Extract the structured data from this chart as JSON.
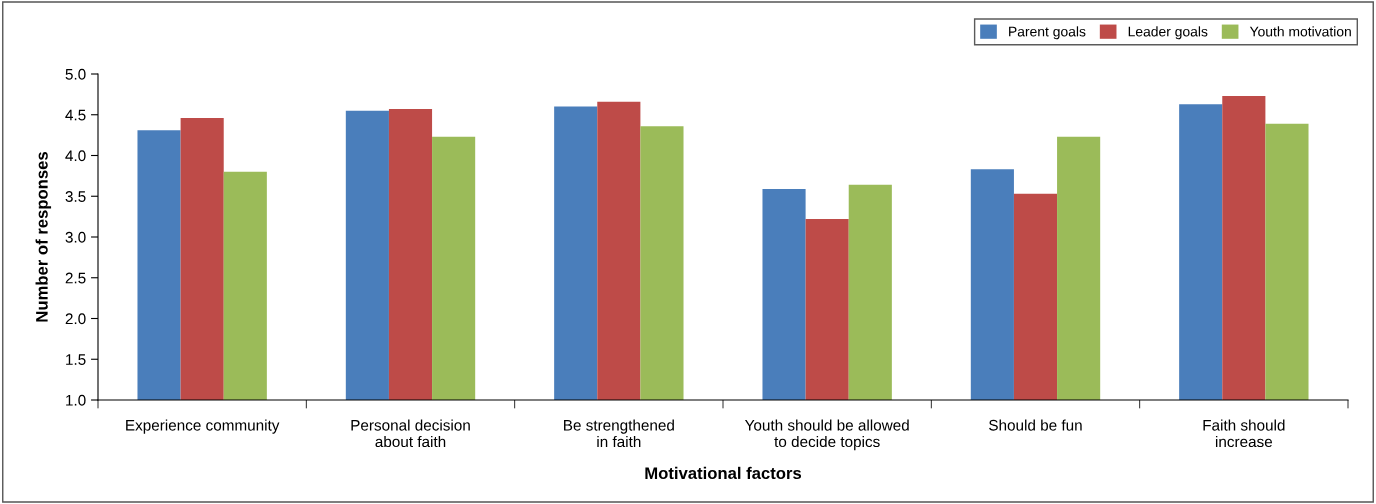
{
  "chart_data": {
    "type": "bar",
    "xlabel": "Motivational factors",
    "ylabel": "Number of responses",
    "categories": [
      "Experience community",
      "Personal decision\nabout faith",
      "Be strengthened\nin faith",
      "Youth should be allowed\nto decide topics",
      "Should be fun",
      "Faith should\nincrease"
    ],
    "series": [
      {
        "name": "Parent goals",
        "color": "#4a7ebb",
        "values": [
          4.31,
          4.55,
          4.6,
          3.59,
          3.83,
          4.63
        ]
      },
      {
        "name": "Leader goals",
        "color": "#be4b48",
        "values": [
          4.46,
          4.57,
          4.66,
          3.22,
          3.53,
          4.73
        ]
      },
      {
        "name": "Youth motivation",
        "color": "#9bbb59",
        "values": [
          3.8,
          4.23,
          4.36,
          3.64,
          4.23,
          4.39
        ]
      }
    ],
    "ylim": [
      1.0,
      5.0
    ],
    "yticks": [
      {
        "value": 1,
        "label": "1.0"
      },
      {
        "value": 1.5,
        "label": "1.5"
      },
      {
        "value": 2,
        "label": "2.0"
      },
      {
        "value": 2.5,
        "label": "2.5"
      },
      {
        "value": 3,
        "label": "3.0"
      },
      {
        "value": 3.5,
        "label": "3.5"
      },
      {
        "value": 4,
        "label": "4.0"
      },
      {
        "value": 4.5,
        "label": "4.5"
      },
      {
        "value": 5,
        "label": "5.0"
      }
    ],
    "grid": false,
    "legend": "top right"
  }
}
